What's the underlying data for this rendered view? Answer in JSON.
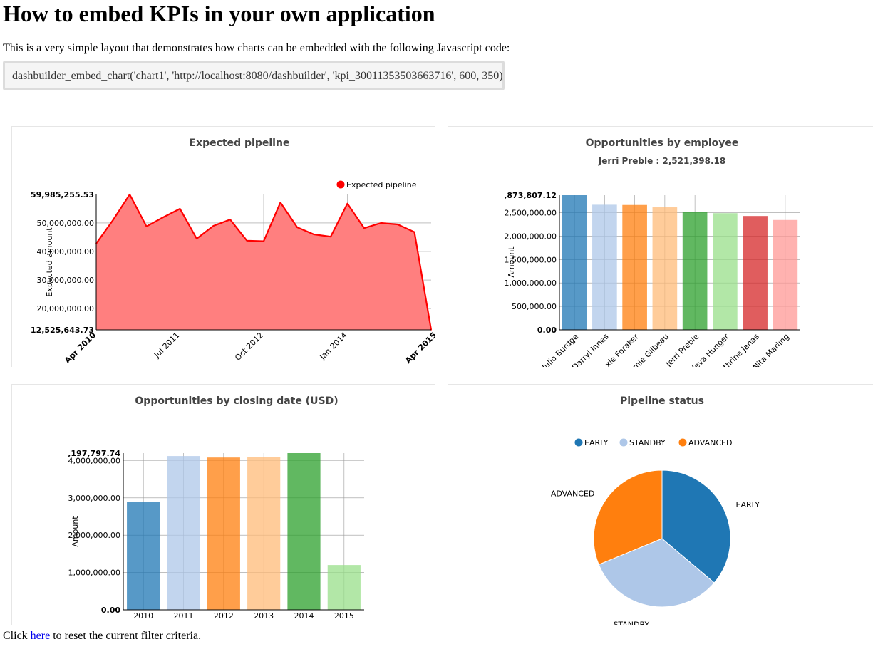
{
  "page": {
    "title": "How to embed KPIs in your own application",
    "intro": "This is a very simple layout that demonstrates how charts can be embedded with the following Javascript code:",
    "code": "dashbuilder_embed_chart('chart1', 'http://localhost:8080/dashbuilder', 'kpi_30011353503663716', 600, 350);",
    "footer_before": "Click ",
    "footer_link": "here",
    "footer_after": " to reset the current filter criteria."
  },
  "colors": {
    "pipeline_line": "#ff0000",
    "pipeline_fill": "#ff7f7f",
    "palette": [
      "#1f77b4",
      "#aec7e8",
      "#ff7f0e",
      "#ffbb78",
      "#2ca02c",
      "#98df8a",
      "#d62728",
      "#ff9896"
    ],
    "title_text": "#444444"
  },
  "chart_data": [
    {
      "id": "pipeline",
      "type": "area",
      "title": "Expected pipeline",
      "subtitle": "",
      "ylabel": "Expected amount",
      "xlabel": "",
      "legend": [
        "Expected pipeline"
      ],
      "legend_position": "top-right",
      "ylim": [
        12525643.73,
        59985255.53
      ],
      "y_ticks": [
        20000000,
        30000000,
        40000000,
        50000000
      ],
      "y_tick_labels": [
        "20,000,000.00",
        "30,000,000.00",
        "40,000,000.00",
        "50,000,000.00"
      ],
      "y_min_label": "12,525,643.73",
      "y_max_label": "59,985,255.53",
      "x_range": [
        "2010-04",
        "2015-04"
      ],
      "x_ticks": [
        "2011-07",
        "2012-10",
        "2014-01"
      ],
      "x_tick_labels": [
        "Jul 2011",
        "Oct 2012",
        "Jan 2014"
      ],
      "x_min_label": "Apr 2010",
      "x_max_label": "Apr 2015",
      "grid": true,
      "x": [
        "2010-04",
        "2010-07",
        "2010-10",
        "2011-01",
        "2011-04",
        "2011-07",
        "2011-10",
        "2012-01",
        "2012-04",
        "2012-07",
        "2012-10",
        "2013-01",
        "2013-04",
        "2013-07",
        "2013-10",
        "2014-01",
        "2014-04",
        "2014-07",
        "2014-10",
        "2015-01",
        "2015-04"
      ],
      "values": [
        42800000,
        51000000,
        59985255.53,
        48800000,
        52000000,
        55000000,
        44500000,
        49000000,
        51200000,
        43800000,
        43600000,
        57200000,
        48500000,
        46000000,
        45200000,
        56800000,
        48200000,
        50000000,
        49500000,
        46800000,
        12525643.73
      ]
    },
    {
      "id": "employees",
      "type": "bar",
      "title": "Opportunities by employee",
      "subtitle": "Jerri Preble : 2,521,398.18",
      "ylabel": "Amount",
      "xlabel": "",
      "ylim": [
        0,
        2873807.12
      ],
      "y_ticks": [
        500000,
        1000000,
        1500000,
        2000000,
        2500000
      ],
      "y_tick_labels": [
        "500,000.00",
        "1,000,000.00",
        "1,500,000.00",
        "2,000,000.00",
        "2,500,000.00"
      ],
      "y_min_label": "0.00",
      "y_max_label": ",873,807.12",
      "grid": true,
      "categories": [
        "Julio Burdge",
        "Darryl Innes",
        "xie Foraker",
        "mie Gilbeau",
        "Jerri Preble",
        "leva Hunger",
        "thrine Janas",
        "Nita Marling"
      ],
      "values": [
        2873807.12,
        2670000,
        2665000,
        2615000,
        2521398.18,
        2490000,
        2430000,
        2345000
      ]
    },
    {
      "id": "closing",
      "type": "bar",
      "title": "Opportunities by closing date (USD)",
      "subtitle": "",
      "ylabel": "Amount",
      "xlabel": "",
      "ylim": [
        0,
        4197797.74
      ],
      "y_ticks": [
        1000000,
        2000000,
        3000000,
        4000000
      ],
      "y_tick_labels": [
        "1,000,000.00",
        "2,000,000.00",
        "3,000,000.00",
        "4,000,000.00"
      ],
      "y_min_label": "0.00",
      "y_max_label": ",197,797.74",
      "grid": true,
      "categories": [
        "2010",
        "2011",
        "2012",
        "2013",
        "2014",
        "2015"
      ],
      "values": [
        2900000,
        4120000,
        4080000,
        4100000,
        4197797.74,
        1200000
      ]
    },
    {
      "id": "status",
      "type": "pie",
      "title": "Pipeline status",
      "legend": [
        "EARLY",
        "STANDBY",
        "ADVANCED"
      ],
      "legend_position": "top",
      "categories": [
        "EARLY",
        "STANDBY",
        "ADVANCED"
      ],
      "values": [
        36.2,
        32.6,
        31.2
      ]
    }
  ]
}
